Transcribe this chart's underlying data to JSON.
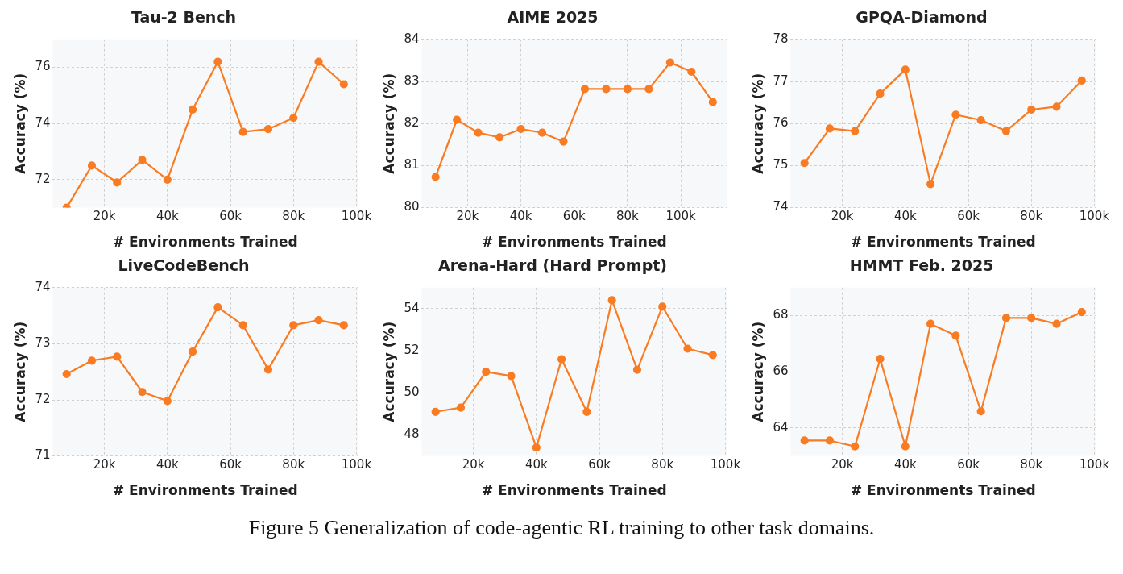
{
  "chart_data": [
    {
      "type": "line",
      "title": "Tau-2 Bench",
      "xlabel": "# Environments Trained",
      "ylabel": "Accuracy (%)",
      "x": [
        8000,
        16000,
        24000,
        32000,
        40000,
        48000,
        56000,
        64000,
        72000,
        80000,
        88000,
        96000
      ],
      "values": [
        71.0,
        72.5,
        71.9,
        72.7,
        72.0,
        74.5,
        76.2,
        73.7,
        73.8,
        74.2,
        76.2,
        75.4
      ],
      "color": "#f97b22",
      "xlim": [
        3600,
        100400
      ],
      "xticks": [
        {
          "value": 20000,
          "label": "20k"
        },
        {
          "value": 40000,
          "label": "40k"
        },
        {
          "value": 60000,
          "label": "60k"
        },
        {
          "value": 80000,
          "label": "80k"
        },
        {
          "value": 100000,
          "label": "100k"
        }
      ],
      "ylim": [
        71,
        77
      ],
      "yticks": [
        72,
        74,
        76
      ],
      "grid": true,
      "marker": "circle"
    },
    {
      "type": "line",
      "title": "AIME 2025",
      "xlabel": "# Environments Trained",
      "ylabel": "Accuracy (%)",
      "x": [
        8000,
        16000,
        24000,
        32000,
        40000,
        48000,
        56000,
        64000,
        72000,
        80000,
        88000,
        96000,
        104000,
        112000
      ],
      "values": [
        80.73,
        82.09,
        81.78,
        81.67,
        81.87,
        81.78,
        81.57,
        82.82,
        82.82,
        82.82,
        82.82,
        83.45,
        83.23,
        82.51
      ],
      "color": "#f97b22",
      "xlim": [
        2800,
        117200
      ],
      "xticks": [
        {
          "value": 20000,
          "label": "20k"
        },
        {
          "value": 40000,
          "label": "40k"
        },
        {
          "value": 60000,
          "label": "60k"
        },
        {
          "value": 80000,
          "label": "80k"
        },
        {
          "value": 100000,
          "label": "100k"
        }
      ],
      "ylim": [
        80,
        84
      ],
      "yticks": [
        80,
        81,
        82,
        83,
        84
      ],
      "grid": true,
      "marker": "circle"
    },
    {
      "type": "line",
      "title": "GPQA-Diamond",
      "xlabel": "# Environments Trained",
      "ylabel": "Accuracy (%)",
      "x": [
        8000,
        16000,
        24000,
        32000,
        40000,
        48000,
        56000,
        64000,
        72000,
        80000,
        88000,
        96000
      ],
      "values": [
        75.06,
        75.88,
        75.82,
        76.71,
        77.28,
        74.56,
        76.21,
        76.08,
        75.82,
        76.33,
        76.4,
        77.02
      ],
      "color": "#f97b22",
      "xlim": [
        3600,
        100400
      ],
      "xticks": [
        {
          "value": 20000,
          "label": "20k"
        },
        {
          "value": 40000,
          "label": "40k"
        },
        {
          "value": 60000,
          "label": "60k"
        },
        {
          "value": 80000,
          "label": "80k"
        },
        {
          "value": 100000,
          "label": "100k"
        }
      ],
      "ylim": [
        74,
        78
      ],
      "yticks": [
        74,
        75,
        76,
        77,
        78
      ],
      "grid": true,
      "marker": "circle"
    },
    {
      "type": "line",
      "title": "LiveCodeBench",
      "xlabel": "# Environments Trained",
      "ylabel": "Accuracy (%)",
      "x": [
        8000,
        16000,
        24000,
        32000,
        40000,
        48000,
        56000,
        64000,
        72000,
        80000,
        88000,
        96000
      ],
      "values": [
        72.46,
        72.7,
        72.77,
        72.14,
        71.98,
        72.86,
        73.65,
        73.33,
        72.54,
        73.33,
        73.42,
        73.33
      ],
      "color": "#f97b22",
      "xlim": [
        3600,
        100400
      ],
      "xticks": [
        {
          "value": 20000,
          "label": "20k"
        },
        {
          "value": 40000,
          "label": "40k"
        },
        {
          "value": 60000,
          "label": "60k"
        },
        {
          "value": 80000,
          "label": "80k"
        },
        {
          "value": 100000,
          "label": "100k"
        }
      ],
      "ylim": [
        71,
        74
      ],
      "yticks": [
        71,
        72,
        73,
        74
      ],
      "grid": true,
      "marker": "circle"
    },
    {
      "type": "line",
      "title": "Arena-Hard (Hard Prompt)",
      "xlabel": "# Environments Trained",
      "ylabel": "Accuracy (%)",
      "x": [
        8000,
        16000,
        24000,
        32000,
        40000,
        48000,
        56000,
        64000,
        72000,
        80000,
        88000,
        96000
      ],
      "values": [
        49.1,
        49.3,
        51.0,
        50.8,
        47.4,
        51.6,
        49.1,
        54.4,
        51.1,
        54.1,
        52.1,
        51.8
      ],
      "color": "#f97b22",
      "xlim": [
        3600,
        100400
      ],
      "xticks": [
        {
          "value": 20000,
          "label": "20k"
        },
        {
          "value": 40000,
          "label": "40k"
        },
        {
          "value": 60000,
          "label": "60k"
        },
        {
          "value": 80000,
          "label": "80k"
        },
        {
          "value": 100000,
          "label": "100k"
        }
      ],
      "ylim": [
        47,
        55
      ],
      "yticks": [
        48,
        50,
        52,
        54
      ],
      "grid": true,
      "marker": "circle"
    },
    {
      "type": "line",
      "title": "HMMT Feb. 2025",
      "xlabel": "# Environments Trained",
      "ylabel": "Accuracy (%)",
      "x": [
        8000,
        16000,
        24000,
        32000,
        40000,
        48000,
        56000,
        64000,
        72000,
        80000,
        88000,
        96000
      ],
      "values": [
        63.55,
        63.55,
        63.34,
        66.46,
        63.34,
        67.71,
        67.29,
        64.59,
        67.92,
        67.92,
        67.71,
        68.13
      ],
      "color": "#f97b22",
      "xlim": [
        3600,
        100400
      ],
      "xticks": [
        {
          "value": 20000,
          "label": "20k"
        },
        {
          "value": 40000,
          "label": "40k"
        },
        {
          "value": 60000,
          "label": "60k"
        },
        {
          "value": 80000,
          "label": "80k"
        },
        {
          "value": 100000,
          "label": "100k"
        }
      ],
      "ylim": [
        63,
        69
      ],
      "yticks": [
        64,
        66,
        68
      ],
      "grid": true,
      "marker": "circle",
      "annotations": [
        "Figure 5  Generalization of code-agentic RL training to other task domains."
      ]
    }
  ]
}
